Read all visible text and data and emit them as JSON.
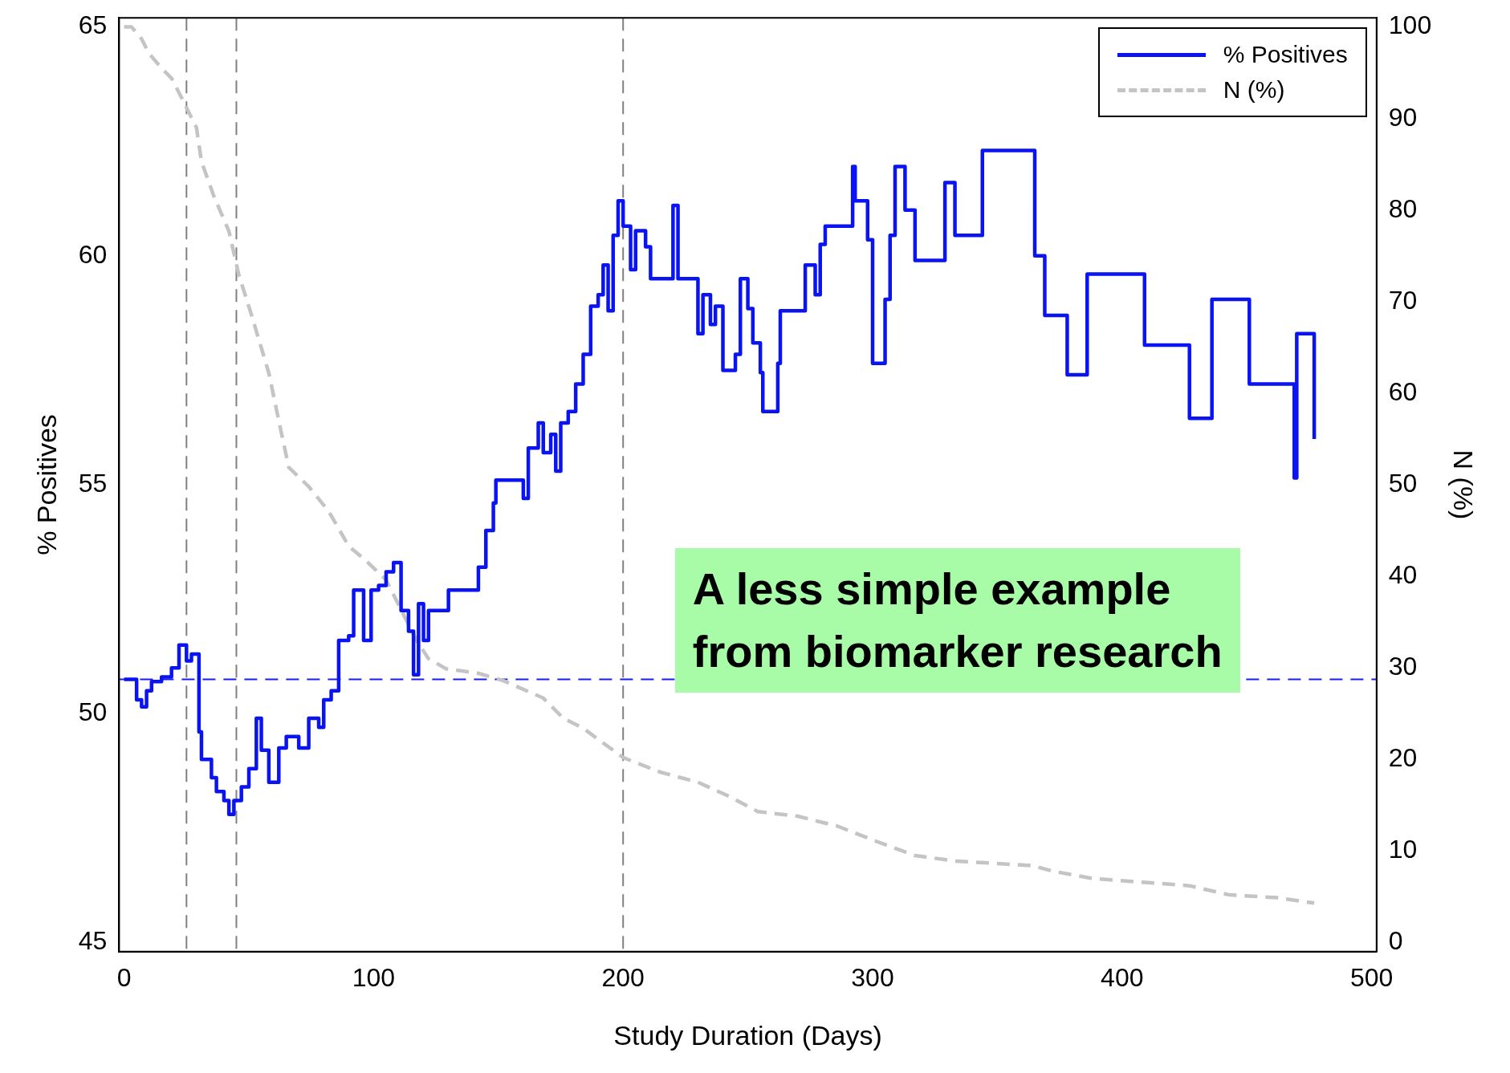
{
  "chart_data": {
    "type": "step",
    "xlabel": "Study Duration (Days)",
    "ylabel": "% Positives",
    "y2label": "N (%)",
    "xlim": [
      -2,
      502
    ],
    "xticks": [
      0,
      100,
      200,
      300,
      400,
      500
    ],
    "ylim": [
      44.8,
      65.2
    ],
    "yticks": [
      45,
      50,
      55,
      60,
      65
    ],
    "y2lim": [
      -1,
      101
    ],
    "y2ticks": [
      0,
      10,
      20,
      30,
      40,
      50,
      60,
      70,
      80,
      90,
      100
    ],
    "grid": false,
    "legend": "top right",
    "marker": "none",
    "series": [
      {
        "name": "% Positives",
        "color": "#0a14f0",
        "line_style": "solid",
        "x": [
          0,
          4,
          5,
          7,
          9,
          11,
          15,
          19,
          22,
          25,
          27,
          30,
          31,
          35,
          37,
          40,
          42,
          44,
          47,
          50,
          53,
          55,
          58,
          62,
          65,
          70,
          74,
          78,
          80,
          83,
          86,
          90,
          92,
          96,
          99,
          102,
          105,
          108,
          111,
          114,
          116,
          118,
          120,
          122,
          130,
          141,
          142,
          145,
          148,
          149,
          158,
          160,
          162,
          166,
          168,
          171,
          173,
          175,
          178,
          181,
          184,
          187,
          190,
          192,
          194,
          196,
          198,
          200,
          203,
          205,
          209,
          211,
          220,
          222,
          230,
          232,
          235,
          237,
          240,
          245,
          247,
          250,
          252,
          255,
          256,
          262,
          263,
          273,
          277,
          279,
          281,
          292,
          293,
          298,
          300,
          305,
          307,
          309,
          313,
          317,
          329,
          333,
          344,
          365,
          369,
          378,
          386,
          409,
          427,
          436,
          451,
          469,
          470,
          477
        ],
        "values": [
          50.75,
          50.75,
          50.3,
          50.15,
          50.5,
          50.7,
          50.8,
          51.0,
          51.5,
          51.15,
          51.3,
          49.6,
          49.0,
          48.6,
          48.3,
          48.1,
          47.8,
          48.1,
          48.4,
          48.8,
          49.9,
          49.2,
          48.5,
          49.25,
          49.5,
          49.25,
          49.9,
          49.7,
          50.3,
          50.5,
          51.6,
          51.7,
          52.7,
          51.6,
          52.7,
          52.8,
          53.1,
          53.3,
          52.25,
          51.8,
          50.85,
          52.4,
          51.6,
          52.25,
          52.7,
          52.7,
          53.2,
          54.0,
          54.6,
          55.1,
          55.1,
          54.7,
          55.8,
          56.35,
          55.7,
          56.1,
          55.3,
          56.35,
          56.6,
          57.2,
          57.85,
          58.9,
          59.15,
          59.8,
          58.8,
          60.45,
          61.2,
          60.65,
          59.7,
          60.55,
          60.2,
          59.5,
          61.1,
          59.5,
          58.3,
          59.15,
          58.5,
          58.9,
          57.5,
          57.85,
          59.5,
          58.85,
          58.1,
          57.45,
          56.6,
          57.65,
          58.8,
          59.8,
          59.15,
          60.25,
          60.65,
          61.95,
          61.2,
          60.35,
          57.65,
          59.05,
          60.45,
          61.95,
          61.0,
          59.9,
          61.6,
          60.45,
          62.3,
          60.0,
          58.7,
          57.4,
          59.6,
          58.05,
          56.45,
          59.05,
          57.2,
          55.15,
          58.3,
          56.0
        ]
      },
      {
        "name": "N (%)",
        "type": "line",
        "axis": "y2",
        "color": "#c4c4c4",
        "line_style": "dashed",
        "x": [
          0,
          3,
          7,
          10,
          15,
          19,
          23,
          29,
          31,
          36,
          42,
          46,
          51,
          58,
          63,
          66,
          74,
          82,
          90,
          97,
          105,
          117,
          122,
          129,
          142,
          152,
          168,
          176,
          184,
          192,
          200,
          215,
          230,
          243,
          254,
          270,
          286,
          301,
          317,
          333,
          364,
          372,
          388,
          427,
          443,
          462,
          477
        ],
        "values": [
          100,
          100,
          98.7,
          97.1,
          95.5,
          94.4,
          92.3,
          89,
          85.3,
          81.5,
          77.7,
          72.9,
          68.6,
          62.2,
          55.7,
          51.9,
          49.8,
          47.1,
          43.3,
          41.7,
          39.6,
          33.1,
          31,
          29.9,
          29.4,
          28.6,
          26.7,
          24.5,
          23.4,
          21.8,
          20.2,
          18.6,
          17.5,
          15.9,
          14.3,
          13.8,
          12.7,
          11.1,
          9.5,
          8.9,
          8.4,
          7.8,
          7.0,
          6.2,
          5.2,
          4.9,
          4.3
        ]
      }
    ],
    "ref_lines": [
      {
        "axis": "x",
        "value": 25,
        "color": "#808080",
        "line_style": "dashed"
      },
      {
        "axis": "x",
        "value": 45,
        "color": "#808080",
        "line_style": "dashed"
      },
      {
        "axis": "x",
        "value": 200,
        "color": "#808080",
        "line_style": "dashed"
      },
      {
        "axis": "y",
        "value": 50.75,
        "color": "#1a1aff",
        "line_style": "dashed"
      }
    ],
    "annotations": [
      "A less simple example\nfrom biomarker research"
    ]
  }
}
